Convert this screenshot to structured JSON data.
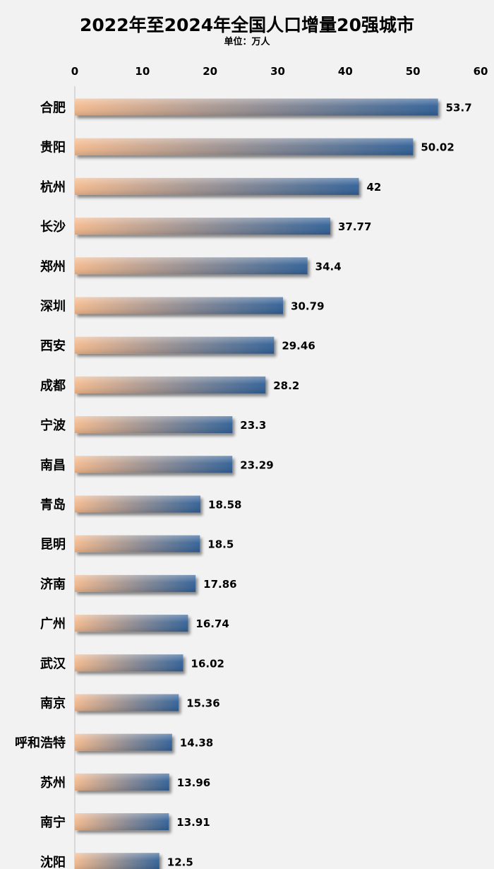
{
  "chart_data": {
    "type": "bar",
    "orientation": "horizontal",
    "title": "2022年至2024年全国人口增量20强城市",
    "subtitle": "单位：万人",
    "xlim": [
      0,
      60
    ],
    "ticks": [
      "0",
      "10",
      "20",
      "30",
      "40",
      "50",
      "60"
    ],
    "tick_values": [
      0,
      10,
      20,
      30,
      40,
      50,
      60
    ],
    "categories": [
      "合肥",
      "贵阳",
      "杭州",
      "长沙",
      "郑州",
      "深圳",
      "西安",
      "成都",
      "宁波",
      "南昌",
      "青岛",
      "昆明",
      "济南",
      "广州",
      "武汉",
      "南京",
      "呼和浩特",
      "苏州",
      "南宁",
      "沈阳"
    ],
    "values": [
      53.7,
      50.02,
      42,
      37.77,
      34.4,
      30.79,
      29.46,
      28.2,
      23.3,
      23.29,
      18.58,
      18.5,
      17.86,
      16.74,
      16.02,
      15.36,
      14.38,
      13.96,
      13.91,
      12.5
    ],
    "value_labels": [
      "53.7",
      "50.02",
      "42",
      "37.77",
      "34.4",
      "30.79",
      "29.46",
      "28.2",
      "23.3",
      "23.29",
      "18.58",
      "18.5",
      "17.86",
      "16.74",
      "16.02",
      "15.36",
      "14.38",
      "13.96",
      "13.91",
      "12.5"
    ],
    "axis_position": "top",
    "grid": false,
    "legend": "none",
    "colors": {
      "bar_start": "#f3b98d",
      "bar_end": "#2f5f96",
      "bar_highlight": "#ffffff",
      "axis_line": "#bfbfbf",
      "background": "#f2f2f2"
    }
  }
}
